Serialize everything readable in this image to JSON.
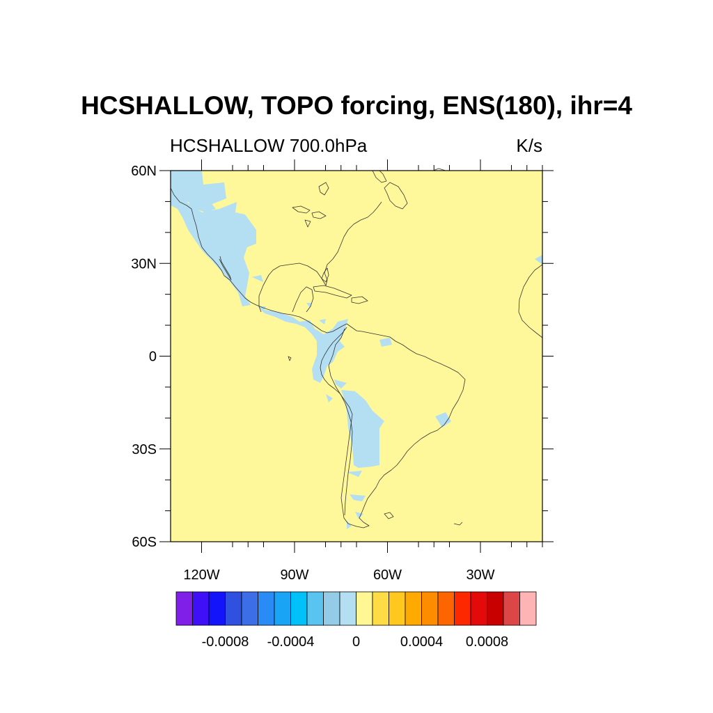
{
  "title": "HCSHALLOW, TOPO forcing, ENS(180), ihr=4",
  "subtitle_left": "HCSHALLOW 700.0hPa",
  "subtitle_right": "K/s",
  "map": {
    "lon_range": [
      -130,
      -10
    ],
    "lat_range": [
      -60,
      60
    ],
    "background_color": "#fef89a",
    "shading_color": "#b4dff2",
    "coast_color": "#333333",
    "lat_ticks": [
      {
        "value": 60,
        "label": "60N"
      },
      {
        "value": 30,
        "label": "30N"
      },
      {
        "value": 0,
        "label": "0"
      },
      {
        "value": -30,
        "label": "30S"
      },
      {
        "value": -60,
        "label": "60S"
      }
    ],
    "lon_ticks": [
      {
        "value": -120,
        "label": "120W"
      },
      {
        "value": -90,
        "label": "90W"
      },
      {
        "value": -60,
        "label": "60W"
      },
      {
        "value": -30,
        "label": "30W"
      }
    ]
  },
  "colorbar": {
    "colors": [
      "#7f1fe8",
      "#3f10f5",
      "#1414fa",
      "#3050e0",
      "#3c6ee8",
      "#2a8af6",
      "#1aa4f6",
      "#00c0fa",
      "#5ac4f0",
      "#94cce8",
      "#b4dff2",
      "#fff794",
      "#fedc46",
      "#fec81e",
      "#feaa00",
      "#fe8c00",
      "#fe6400",
      "#fe2800",
      "#e40a0a",
      "#c80000",
      "#dc4646",
      "#feb4b4"
    ],
    "labels": [
      "-0.0008",
      "-0.0004",
      "0",
      "0.0004",
      "0.0008"
    ]
  }
}
